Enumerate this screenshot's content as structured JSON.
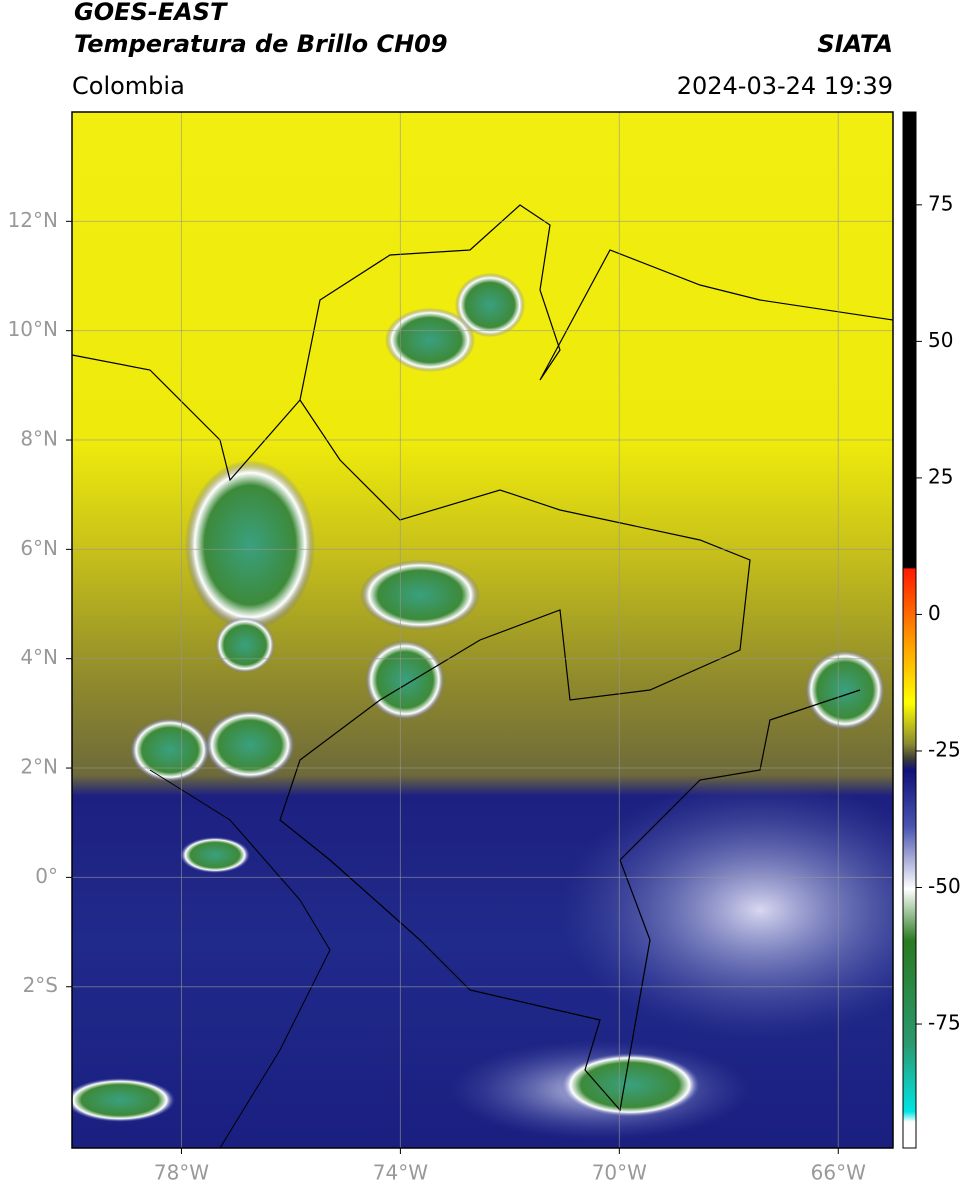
{
  "header": {
    "title": "GOES-EAST",
    "subtitle": "Temperatura de Brillo CH09",
    "source": "SIATA",
    "region": "Colombia",
    "datetime": "2024-03-24 19:39"
  },
  "map": {
    "xlim": [
      -80,
      -65
    ],
    "ylim": [
      -4.95,
      14.0
    ],
    "xticks": [
      {
        "value": -78,
        "label": "78°W"
      },
      {
        "value": -74,
        "label": "74°W"
      },
      {
        "value": -70,
        "label": "70°W"
      },
      {
        "value": -66,
        "label": "66°W"
      }
    ],
    "yticks": [
      {
        "value": 12,
        "label": "12°N"
      },
      {
        "value": 10,
        "label": "10°N"
      },
      {
        "value": 8,
        "label": "8°N"
      },
      {
        "value": 6,
        "label": "6°N"
      },
      {
        "value": 4,
        "label": "4°N"
      },
      {
        "value": 2,
        "label": "2°N"
      },
      {
        "value": 0,
        "label": "0°"
      },
      {
        "value": -2,
        "label": "2°S"
      }
    ]
  },
  "colorbar": {
    "lim": [
      -97.7,
      92
    ],
    "ticks": [
      75,
      50,
      25,
      0,
      -25,
      -50,
      -75
    ]
  }
}
